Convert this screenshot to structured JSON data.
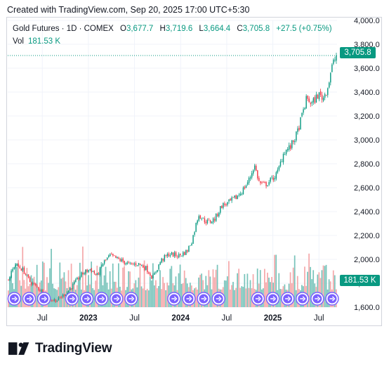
{
  "header": {
    "created": "Created with TradingView.com, Sep 20, 2025 17:00 UTC+5:30"
  },
  "legend": {
    "symbol": "Gold Futures · 1D · COMEX",
    "o_label": "O",
    "o": "3,677.7",
    "h_label": "H",
    "h": "3,719.6",
    "l_label": "L",
    "l": "3,664.4",
    "c_label": "C",
    "c": "3,705.8",
    "change": "+27.5 (+0.75%)",
    "vol_label": "Vol",
    "vol": "181.53 K"
  },
  "price_tag": "3,705.8",
  "vol_tag": "181.53 K",
  "brand": {
    "name": "TradingView"
  },
  "colors": {
    "up": "#089981",
    "down": "#f23645",
    "vol_up": "#79c4bb",
    "vol_down": "#f5a9ab",
    "event": "#7b61ff",
    "grid": "#f0f3fa",
    "text": "#131722"
  },
  "chart_data": {
    "type": "candlestick",
    "y_axis": {
      "min": 1600,
      "max": 4000,
      "ticks": [
        "4,000.0",
        "3,800.0",
        "3,600.0",
        "3,400.0",
        "3,200.0",
        "3,000.0",
        "2,800.0",
        "2,600.0",
        "2,400.0",
        "2,200.0",
        "2,000.0",
        "1,800.0",
        "1,600.0"
      ],
      "tick_values": [
        4000,
        3800,
        3600,
        3400,
        3200,
        3000,
        2800,
        2600,
        2400,
        2200,
        2000,
        1800,
        1600
      ]
    },
    "x_axis": {
      "labels": [
        "Jul",
        "2023",
        "Jul",
        "2024",
        "Jul",
        "2025",
        "Jul"
      ],
      "label_frac": [
        0.105,
        0.245,
        0.385,
        0.525,
        0.665,
        0.805,
        0.945
      ],
      "bold": [
        false,
        true,
        false,
        true,
        false,
        true,
        false
      ]
    },
    "close_series": [
      {
        "t": 0.0,
        "v": 1830
      },
      {
        "t": 0.02,
        "v": 1960
      },
      {
        "t": 0.045,
        "v": 1910
      },
      {
        "t": 0.065,
        "v": 1815
      },
      {
        "t": 0.09,
        "v": 1760
      },
      {
        "t": 0.115,
        "v": 1700
      },
      {
        "t": 0.13,
        "v": 1660
      },
      {
        "t": 0.15,
        "v": 1660
      },
      {
        "t": 0.18,
        "v": 1730
      },
      {
        "t": 0.2,
        "v": 1795
      },
      {
        "t": 0.225,
        "v": 1880
      },
      {
        "t": 0.25,
        "v": 1920
      },
      {
        "t": 0.27,
        "v": 1860
      },
      {
        "t": 0.29,
        "v": 1975
      },
      {
        "t": 0.31,
        "v": 2030
      },
      {
        "t": 0.34,
        "v": 1995
      },
      {
        "t": 0.37,
        "v": 1955
      },
      {
        "t": 0.395,
        "v": 1965
      },
      {
        "t": 0.42,
        "v": 1925
      },
      {
        "t": 0.44,
        "v": 1845
      },
      {
        "t": 0.465,
        "v": 1990
      },
      {
        "t": 0.49,
        "v": 2045
      },
      {
        "t": 0.52,
        "v": 2030
      },
      {
        "t": 0.545,
        "v": 2070
      },
      {
        "t": 0.56,
        "v": 2160
      },
      {
        "t": 0.58,
        "v": 2380
      },
      {
        "t": 0.595,
        "v": 2330
      },
      {
        "t": 0.61,
        "v": 2310
      },
      {
        "t": 0.63,
        "v": 2340
      },
      {
        "t": 0.65,
        "v": 2450
      },
      {
        "t": 0.67,
        "v": 2470
      },
      {
        "t": 0.695,
        "v": 2520
      },
      {
        "t": 0.715,
        "v": 2580
      },
      {
        "t": 0.735,
        "v": 2670
      },
      {
        "t": 0.75,
        "v": 2790
      },
      {
        "t": 0.765,
        "v": 2640
      },
      {
        "t": 0.78,
        "v": 2620
      },
      {
        "t": 0.8,
        "v": 2660
      },
      {
        "t": 0.82,
        "v": 2720
      },
      {
        "t": 0.84,
        "v": 2900
      },
      {
        "t": 0.86,
        "v": 2940
      },
      {
        "t": 0.88,
        "v": 3050
      },
      {
        "t": 0.895,
        "v": 3200
      },
      {
        "t": 0.91,
        "v": 3350
      },
      {
        "t": 0.925,
        "v": 3300
      },
      {
        "t": 0.945,
        "v": 3380
      },
      {
        "t": 0.96,
        "v": 3350
      },
      {
        "t": 0.975,
        "v": 3450
      },
      {
        "t": 0.985,
        "v": 3600
      },
      {
        "t": 1.0,
        "v": 3705.8
      }
    ],
    "volume_max_k": 400,
    "last_close": 3705.8,
    "last_volume_k": 181.53,
    "event_markers": {
      "count_group1": 3,
      "count_group2": 5,
      "count_group3": 4,
      "count_group4": 6,
      "count_group5": 5
    }
  }
}
